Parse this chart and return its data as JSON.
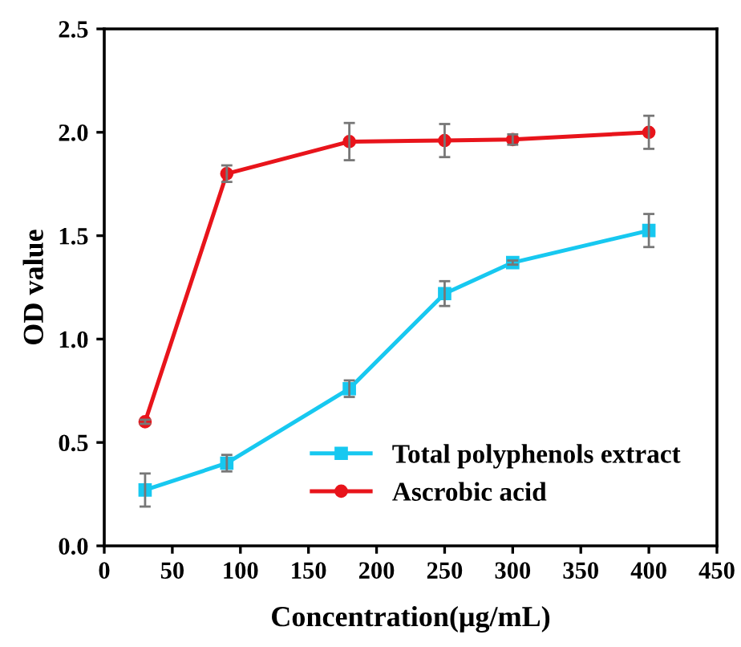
{
  "chart_data": {
    "type": "line",
    "xlabel": "Concentration(μg/mL)",
    "ylabel": "OD value",
    "x": [
      30,
      90,
      180,
      250,
      300,
      400
    ],
    "series": [
      {
        "name": "Total polyphenols extract",
        "color": "#17c8f0",
        "marker": "square",
        "values": [
          0.27,
          0.4,
          0.76,
          1.22,
          1.37,
          1.525
        ],
        "errors": [
          0.08,
          0.04,
          0.04,
          0.06,
          0.01,
          0.08
        ]
      },
      {
        "name": "Ascrobic acid",
        "color": "#e8141b",
        "marker": "circle",
        "values": [
          0.6,
          1.8,
          1.955,
          1.96,
          1.965,
          2.0
        ],
        "errors": [
          0.01,
          0.04,
          0.09,
          0.08,
          0.025,
          0.08
        ]
      }
    ],
    "xlim": [
      0,
      450
    ],
    "xticks": [
      0,
      50,
      100,
      150,
      200,
      250,
      300,
      350,
      400,
      450
    ],
    "ylim": [
      0,
      2.5
    ],
    "yticks": [
      {
        "value": 0,
        "label": "0.0"
      },
      0.5,
      {
        "value": 1,
        "label": "1.0"
      },
      1.5,
      {
        "value": 2,
        "label": "2.0"
      },
      2.5
    ],
    "legend": "bottom right",
    "grid": false,
    "line_style": "solid"
  }
}
